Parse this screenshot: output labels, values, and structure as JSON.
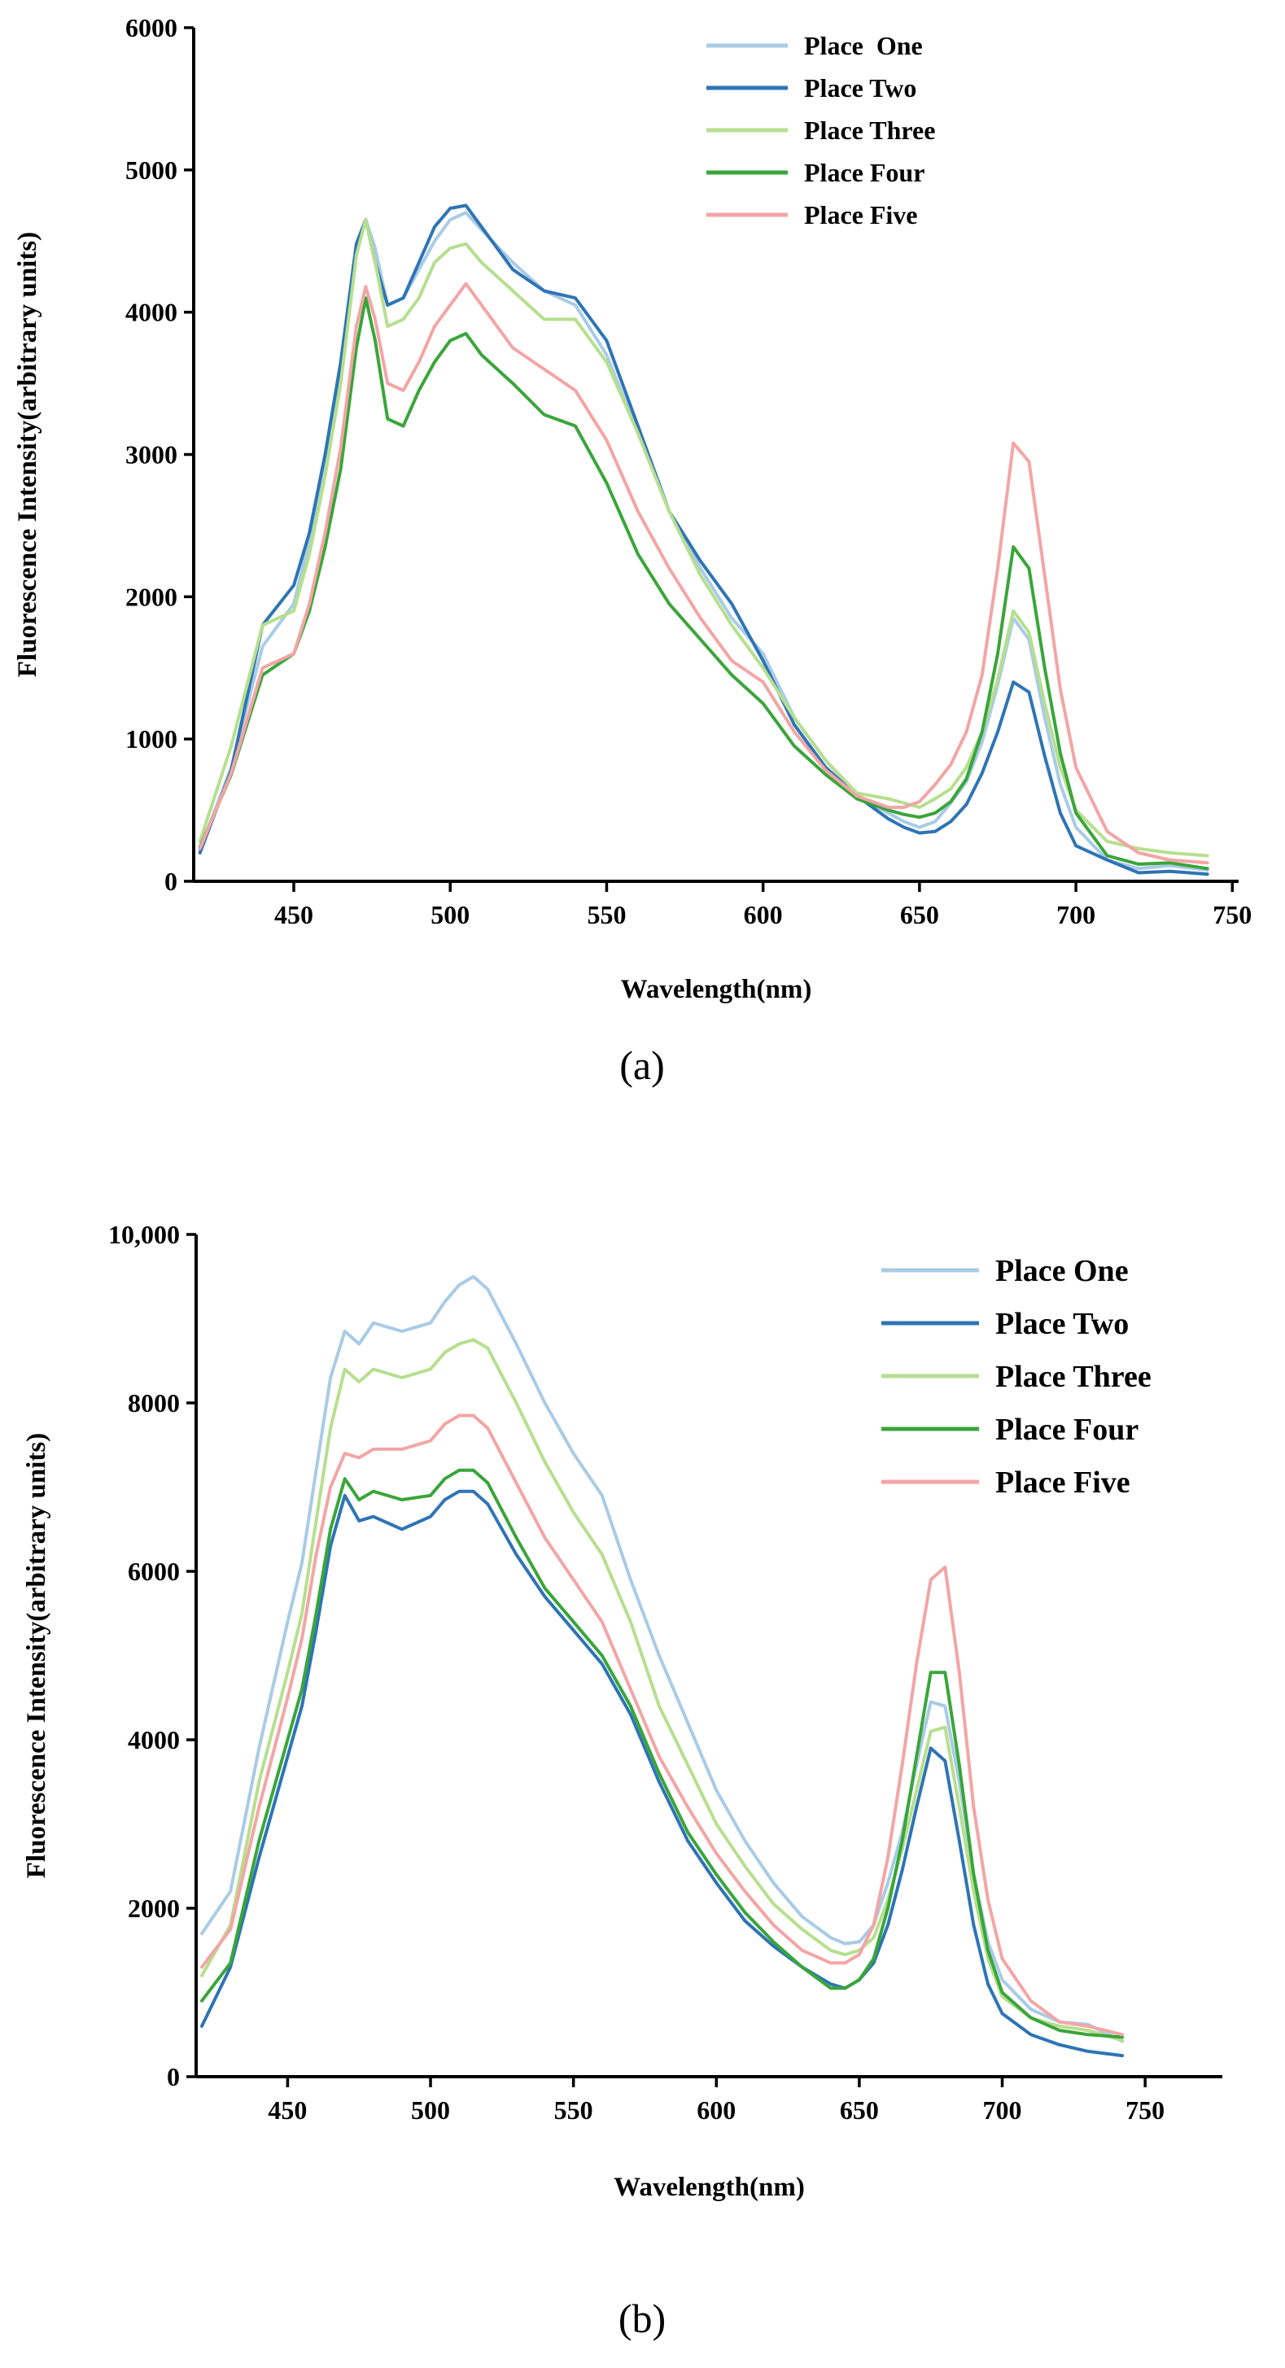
{
  "colors": {
    "place_one": "#a9cbe6",
    "place_two": "#2e74b5",
    "place_three": "#b6df8e",
    "place_four": "#3aa53a",
    "place_five": "#f3a5a5"
  },
  "chart_data": [
    {
      "type": "line",
      "panel_label": "(a)",
      "title": "",
      "xlabel": "Wavelength(nm)",
      "ylabel": "Fluorescence Intensity(arbitrary units)",
      "xlim": [
        418,
        752
      ],
      "ylim": [
        0,
        6000
      ],
      "xticks": [
        450,
        500,
        550,
        600,
        650,
        700,
        750
      ],
      "yticks": [
        0,
        1000,
        2000,
        3000,
        4000,
        5000,
        6000
      ],
      "xtick_labels": [
        "450",
        "500",
        "550",
        "600",
        "650",
        "700",
        "750"
      ],
      "ytick_labels": [
        "0",
        "1000",
        "2000",
        "3000",
        "4000",
        "5000",
        "6000"
      ],
      "legend_position": "top-right",
      "x": [
        420,
        430,
        440,
        450,
        455,
        460,
        465,
        470,
        473,
        476,
        480,
        485,
        490,
        495,
        500,
        505,
        510,
        520,
        530,
        540,
        550,
        560,
        570,
        580,
        590,
        600,
        610,
        620,
        630,
        640,
        645,
        650,
        655,
        660,
        665,
        670,
        675,
        680,
        685,
        690,
        695,
        700,
        710,
        720,
        730,
        742
      ],
      "series": [
        {
          "name": "Place  One",
          "color_key": "place_one",
          "values": [
            220,
            800,
            1650,
            1950,
            2400,
            2950,
            3600,
            4450,
            4650,
            4450,
            4050,
            4100,
            4300,
            4500,
            4650,
            4700,
            4580,
            4350,
            4150,
            4050,
            3700,
            3150,
            2600,
            2200,
            1850,
            1600,
            1150,
            850,
            600,
            480,
            420,
            380,
            420,
            550,
            700,
            980,
            1380,
            1850,
            1700,
            1150,
            680,
            380,
            150,
            90,
            110,
            80
          ]
        },
        {
          "name": "Place Two",
          "color_key": "place_two",
          "values": [
            200,
            780,
            1800,
            2080,
            2450,
            3000,
            3650,
            4480,
            4650,
            4350,
            4050,
            4100,
            4350,
            4600,
            4730,
            4750,
            4600,
            4300,
            4150,
            4100,
            3800,
            3200,
            2600,
            2250,
            1950,
            1550,
            1100,
            800,
            600,
            440,
            380,
            340,
            350,
            420,
            540,
            760,
            1050,
            1400,
            1330,
            880,
            480,
            250,
            150,
            60,
            70,
            50
          ]
        },
        {
          "name": "Place Three",
          "color_key": "place_three",
          "values": [
            280,
            950,
            1800,
            1900,
            2300,
            2850,
            3500,
            4400,
            4650,
            4350,
            3900,
            3950,
            4100,
            4350,
            4450,
            4480,
            4350,
            4150,
            3950,
            3950,
            3650,
            3150,
            2600,
            2150,
            1800,
            1500,
            1150,
            850,
            620,
            580,
            550,
            520,
            580,
            650,
            800,
            1050,
            1420,
            1900,
            1750,
            1250,
            800,
            500,
            280,
            230,
            200,
            180
          ]
        },
        {
          "name": "Place Four",
          "color_key": "place_four",
          "values": [
            240,
            750,
            1450,
            1600,
            1900,
            2350,
            2900,
            3750,
            4100,
            3800,
            3250,
            3200,
            3450,
            3650,
            3800,
            3850,
            3700,
            3500,
            3280,
            3200,
            2800,
            2300,
            1950,
            1700,
            1450,
            1250,
            950,
            750,
            580,
            500,
            470,
            450,
            480,
            560,
            720,
            1050,
            1600,
            2350,
            2200,
            1500,
            900,
            480,
            180,
            120,
            130,
            90
          ]
        },
        {
          "name": "Place Five",
          "color_key": "place_five",
          "values": [
            230,
            760,
            1500,
            1600,
            1950,
            2450,
            3050,
            3900,
            4180,
            3950,
            3500,
            3450,
            3650,
            3900,
            4050,
            4200,
            4050,
            3750,
            3600,
            3450,
            3100,
            2600,
            2200,
            1850,
            1550,
            1400,
            1050,
            780,
            600,
            520,
            520,
            560,
            680,
            820,
            1050,
            1450,
            2200,
            3080,
            2950,
            2150,
            1350,
            800,
            350,
            200,
            150,
            130
          ]
        }
      ]
    },
    {
      "type": "line",
      "panel_label": "(b)",
      "title": "",
      "xlabel": "Wavelength(nm)",
      "ylabel": "Fluorescence Intensity(arbitrary units)",
      "xlim": [
        418,
        777
      ],
      "ylim": [
        0,
        10000
      ],
      "xticks": [
        450,
        500,
        550,
        600,
        650,
        700,
        750
      ],
      "yticks": [
        0,
        2000,
        4000,
        6000,
        8000,
        10000
      ],
      "xtick_labels": [
        "450",
        "500",
        "550",
        "600",
        "650",
        "700",
        "750"
      ],
      "ytick_labels": [
        "0",
        "2000",
        "4000",
        "6000",
        "8000",
        "10,000"
      ],
      "legend_position": "top-right",
      "x": [
        420,
        430,
        440,
        450,
        455,
        460,
        465,
        470,
        475,
        480,
        490,
        500,
        505,
        510,
        515,
        520,
        530,
        540,
        550,
        560,
        570,
        580,
        590,
        600,
        610,
        620,
        630,
        640,
        645,
        650,
        655,
        660,
        665,
        670,
        675,
        680,
        685,
        690,
        695,
        700,
        710,
        720,
        730,
        742
      ],
      "series": [
        {
          "name": "Place One",
          "color_key": "place_one",
          "values": [
            1700,
            2200,
            3900,
            5400,
            6100,
            7200,
            8300,
            8850,
            8700,
            8950,
            8850,
            8950,
            9200,
            9400,
            9500,
            9350,
            8700,
            8000,
            7400,
            6900,
            5900,
            5000,
            4200,
            3400,
            2800,
            2300,
            1900,
            1650,
            1580,
            1600,
            1800,
            2300,
            2900,
            3700,
            4450,
            4400,
            3500,
            2400,
            1600,
            1150,
            800,
            650,
            620,
            420
          ]
        },
        {
          "name": "Place Two",
          "color_key": "place_two",
          "values": [
            600,
            1300,
            2600,
            3800,
            4400,
            5300,
            6300,
            6900,
            6600,
            6650,
            6500,
            6650,
            6850,
            6950,
            6950,
            6800,
            6200,
            5700,
            5300,
            4900,
            4300,
            3500,
            2800,
            2300,
            1850,
            1550,
            1300,
            1100,
            1050,
            1150,
            1350,
            1800,
            2450,
            3200,
            3900,
            3750,
            2800,
            1800,
            1100,
            750,
            500,
            380,
            300,
            250
          ]
        },
        {
          "name": "Place Three",
          "color_key": "place_three",
          "values": [
            1200,
            1800,
            3500,
            4800,
            5500,
            6600,
            7700,
            8400,
            8250,
            8400,
            8300,
            8400,
            8600,
            8700,
            8750,
            8650,
            8000,
            7300,
            6700,
            6200,
            5400,
            4400,
            3700,
            3000,
            2500,
            2050,
            1750,
            1500,
            1450,
            1500,
            1650,
            2100,
            2700,
            3400,
            4100,
            4150,
            3200,
            2200,
            1400,
            950,
            700,
            600,
            550,
            430
          ]
        },
        {
          "name": "Place Four",
          "color_key": "place_four",
          "values": [
            900,
            1350,
            2800,
            4000,
            4600,
            5500,
            6500,
            7100,
            6850,
            6950,
            6850,
            6900,
            7100,
            7200,
            7200,
            7050,
            6400,
            5800,
            5400,
            5000,
            4400,
            3600,
            2900,
            2400,
            1950,
            1600,
            1300,
            1050,
            1050,
            1150,
            1400,
            2000,
            2800,
            3800,
            4800,
            4800,
            3700,
            2400,
            1500,
            1000,
            700,
            550,
            500,
            470
          ]
        },
        {
          "name": "Place Five",
          "color_key": "place_five",
          "values": [
            1300,
            1750,
            3200,
            4500,
            5200,
            6200,
            7000,
            7400,
            7350,
            7450,
            7450,
            7550,
            7750,
            7850,
            7850,
            7700,
            7050,
            6400,
            5900,
            5400,
            4600,
            3800,
            3200,
            2650,
            2200,
            1800,
            1500,
            1350,
            1350,
            1450,
            1800,
            2600,
            3700,
            4900,
            5900,
            6050,
            4800,
            3200,
            2100,
            1400,
            900,
            650,
            600,
            500
          ]
        }
      ]
    }
  ]
}
